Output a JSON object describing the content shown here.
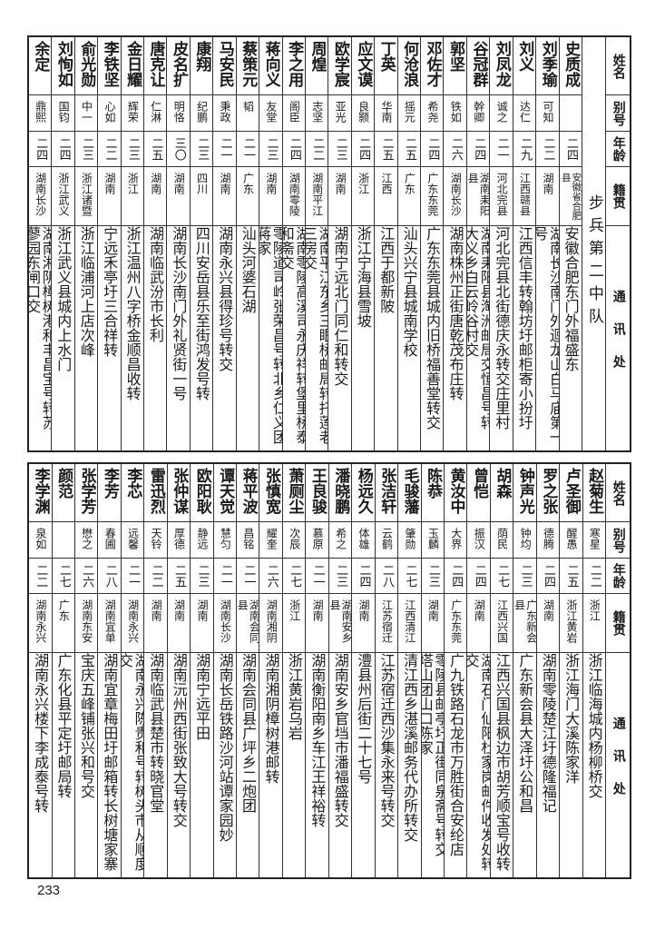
{
  "headers": {
    "name": "姓名",
    "alias": "别号",
    "age": "年龄",
    "origin": "籍贯",
    "address": "通讯处"
  },
  "section_title": "步兵第二中队",
  "top_rows": [
    {
      "name": "史质成",
      "alias": "",
      "age": "二四",
      "origin": "安徽省合肥县",
      "address": "安徽合肥东门外福盛东"
    },
    {
      "name": "刘季瑜",
      "alias": "可知",
      "age": "二二",
      "origin": "湖南",
      "address": "湖南长沙南门外迴龙山白马庙第一号"
    },
    {
      "name": "刘义",
      "alias": "达仁",
      "age": "二九",
      "origin": "江西赣县",
      "address": "江西信丰转翰坊圩邮柜寄小扮圩"
    },
    {
      "name": "刘凤龙",
      "alias": "诚之",
      "age": "二一",
      "origin": "河北完县",
      "address": "河北完县北街德庆永转交庄里村"
    },
    {
      "name": "谷冠群",
      "alias": "幹卿",
      "age": "二四",
      "origin": "湖南耒阳县",
      "address": "湖南耒阳县淘洲邮局交恒昌号转大义乡白云岭谷村交"
    },
    {
      "name": "郭坚",
      "alias": "铁如",
      "age": "二六",
      "origin": "湖南长沙",
      "address": "湖南株州正街唐乾茂布庄转"
    },
    {
      "name": "邓佐才",
      "alias": "希尧",
      "age": "二四",
      "origin": "广东东莞",
      "address": "广东东莞县城内旧桥福善堂转交"
    },
    {
      "name": "何沧浪",
      "alias": "摇元",
      "age": "二五",
      "origin": "广东",
      "address": "汕头兴宁县城南学校"
    },
    {
      "name": "丁英",
      "alias": "华南",
      "age": "二五",
      "origin": "江西",
      "address": "江西于都新陂"
    },
    {
      "name": "应文谟",
      "alias": "良颢",
      "age": "二四",
      "origin": "浙江",
      "address": "浙江宁海县雪坡"
    },
    {
      "name": "欧学宸",
      "alias": "亚光",
      "age": "二三",
      "origin": "湖南",
      "address": "湖南宁远北门同仁和转交"
    },
    {
      "name": "周煌",
      "alias": "志坚",
      "age": "二二",
      "origin": "湖南平江",
      "address": "湖南平江东乡三眼桥邮局转托莲老三房交"
    },
    {
      "name": "李之用",
      "alias": "阁臣",
      "age": "二四",
      "origin": "湖南零陵",
      "address": "湖南零陵高溪司永庆祥转堡里桥泰和斋交"
    },
    {
      "name": "蒋向义",
      "alias": "友堂",
      "age": "二三",
      "origin": "湖南",
      "address": "零陵道司岭张荣昌号转北乡仁义团蒋家"
    },
    {
      "name": "蔡策元",
      "alias": "韬",
      "age": "二一",
      "origin": "广东",
      "address": "汕头河婆石湖"
    },
    {
      "name": "马安民",
      "alias": "秉政",
      "age": "二一",
      "origin": "湖南",
      "address": "湖南永兴县得珍号转交"
    },
    {
      "name": "康翔",
      "alias": "纪鹏",
      "age": "二三",
      "origin": "四川",
      "address": "四川安岳县乐至街鸿发号转"
    },
    {
      "name": "皮名扩",
      "alias": "明恪",
      "age": "三〇",
      "origin": "湖南",
      "address": "湖南长沙南门外礼贤街一号"
    },
    {
      "name": "唐克让",
      "alias": "仁淋",
      "age": "二五",
      "origin": "湖南",
      "address": "湖南临武汾市长利"
    },
    {
      "name": "金日耀",
      "alias": "辉荣",
      "age": "二三",
      "origin": "浙江",
      "address": "浙江温州八字桥金顺昌收转"
    },
    {
      "name": "李铁坚",
      "alias": "心如",
      "age": "二二",
      "origin": "湖南",
      "address": "宁远禾亭圩三合祥转"
    },
    {
      "name": "俞光勋",
      "alias": "中一",
      "age": "二三",
      "origin": "浙江诸暨",
      "address": "浙江临浦河上店次峰"
    },
    {
      "name": "刘恂如",
      "alias": "国钧",
      "age": "二四",
      "origin": "浙江武义",
      "address": "浙江武义县城内上水门"
    },
    {
      "name": "余定",
      "alias": "鼎熙",
      "age": "二四",
      "origin": "湖南长沙",
      "address": "湖南湘阴樟树港和丰昌宝号转苏蓼园东闸口交"
    }
  ],
  "bottom_rows": [
    {
      "name": "赵菊生",
      "alias": "寒星",
      "age": "二二",
      "origin": "浙江",
      "address": "浙江临海城内杨柳桥交"
    },
    {
      "name": "卢圣御",
      "alias": "醒愚",
      "age": "二五",
      "origin": "浙江黄岩",
      "address": "浙江海门大溪陈家洋"
    },
    {
      "name": "罗之张",
      "alias": "德腾",
      "age": "二四",
      "origin": "湖南",
      "address": "湖南零陵楚江圩德隆福记"
    },
    {
      "name": "钟声光",
      "alias": "钟均",
      "age": "二三",
      "origin": "广东新会县",
      "address": "广东新会县大泽圩公和昌"
    },
    {
      "name": "胡森",
      "alias": "荫民",
      "age": "二七",
      "origin": "江西兴国",
      "address": "江西兴国县枫边市胡芳顺宝号收转"
    },
    {
      "name": "曾恺",
      "alias": "振汉",
      "age": "二四",
      "origin": "湖南",
      "address": "湖南石门仙阳杜家岗邮件收发处转交"
    },
    {
      "name": "黄汝中",
      "alias": "大界",
      "age": "二四",
      "origin": "广东东莞",
      "address": "广九铁路石龙市万胜街合安纶店"
    },
    {
      "name": "陈恭",
      "alias": "玉麟",
      "age": "二三",
      "origin": "湖南",
      "address": "零陵县邮亭圩正街同泉斋号转交塔山团山口陈家"
    },
    {
      "name": "毛骏藩",
      "alias": "肇勋",
      "age": "二七",
      "origin": "江西清江",
      "address": "清江西乡湛溪邮务代办所转交"
    },
    {
      "name": "张洁轩",
      "alias": "云鹤",
      "age": "二八",
      "origin": "江苏宿迁",
      "address": "江苏宿迁西沙集永来号转交"
    },
    {
      "name": "杨远久",
      "alias": "体雄",
      "age": "二四",
      "origin": "湖南",
      "address": "澧县州后街二十七号"
    },
    {
      "name": "潘晓鹏",
      "alias": "希之",
      "age": "二三",
      "origin": "湖南安乡县",
      "address": "湖南安乡官垱市潘福盛转交"
    },
    {
      "name": "王良骏",
      "alias": "慕原",
      "age": "二一",
      "origin": "湖南",
      "address": "湖南衡阳南乡车江王祥裕转"
    },
    {
      "name": "萧厕尘",
      "alias": "次辰",
      "age": "二七",
      "origin": "浙江",
      "address": "浙江黄岩乌岩"
    },
    {
      "name": "张慎宽",
      "alias": "耀奎",
      "age": "二六",
      "origin": "湖南湘阴",
      "address": "湖南湘阴樟树港邮转"
    },
    {
      "name": "蒋平波",
      "alias": "昌铭",
      "age": "二一",
      "origin": "湖南会同县",
      "address": "湖南会同县广坪乡二炮团"
    },
    {
      "name": "谭天觉",
      "alias": "慧匀",
      "age": "二一",
      "origin": "湖南长沙",
      "address": "湖南长岳铁路沙河站谭家园妙"
    },
    {
      "name": "欧阳耿",
      "alias": "静远",
      "age": "二三",
      "origin": "湖南",
      "address": "湖南宁远平田"
    },
    {
      "name": "张仲谋",
      "alias": "厚德",
      "age": "二五",
      "origin": "湖南",
      "address": "湖南沅州西街张致大号转交"
    },
    {
      "name": "雷迅烈",
      "alias": "天铃",
      "age": "二二",
      "origin": "湖南",
      "address": "湖南临武县楚市转晓官堂"
    },
    {
      "name": "李芯",
      "alias": "远馨",
      "age": "二一",
      "origin": "湖南永兴",
      "address": "湖南永兴陈贵和号转树头市从顺度交"
    },
    {
      "name": "李芳",
      "alias": "春圃",
      "age": "二八",
      "origin": "湖南宜单",
      "address": "湖南宜章梅田圩邮箱转长树塘家寨"
    },
    {
      "name": "张学芳",
      "alias": "懋之",
      "age": "二六",
      "origin": "湖南东安",
      "address": "宝庆五峰铺张兴和号交"
    },
    {
      "name": "颜范",
      "alias": "",
      "age": "二七",
      "origin": "广东",
      "address": "广东化县平定圩邮局转"
    },
    {
      "name": "李学渊",
      "alias": "泉如",
      "age": "二二",
      "origin": "湖南永兴",
      "address": "湖南永兴楼下李成泰号转"
    }
  ],
  "page_number": "233"
}
